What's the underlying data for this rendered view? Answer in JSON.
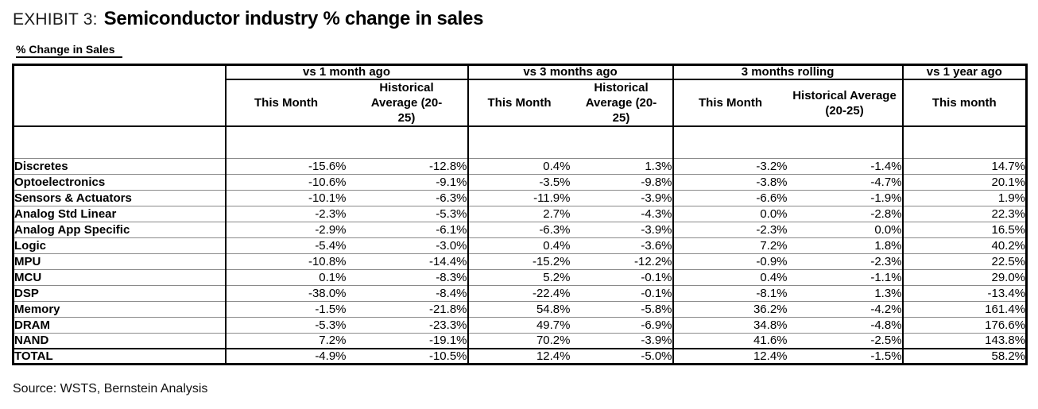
{
  "header": {
    "exhibit_label": "EXHIBIT 3:",
    "title": "Semiconductor industry % change in sales",
    "caption": "% Change in Sales"
  },
  "footer": {
    "source": "Source: WSTS, Bernstein Analysis"
  },
  "table": {
    "column_groups": [
      {
        "label": "vs 1 month ago",
        "sub": [
          "This Month",
          "Historical Average (20-25)"
        ]
      },
      {
        "label": "vs 3 months ago",
        "sub": [
          "This Month",
          "Historical Average (20-25)"
        ]
      },
      {
        "label": "3 months rolling",
        "sub": [
          "This Month",
          "Historical Average (20-25)"
        ]
      },
      {
        "label": "vs 1 year ago",
        "sub": [
          "This month"
        ]
      }
    ],
    "rows": [
      {
        "label": "Discretes",
        "indent": false,
        "total": false,
        "values": [
          "-15.6%",
          "-12.8%",
          "0.4%",
          "1.3%",
          "-3.2%",
          "-1.4%",
          "14.7%"
        ]
      },
      {
        "label": "Optoelectronics",
        "indent": false,
        "total": false,
        "values": [
          "-10.6%",
          "-9.1%",
          "-3.5%",
          "-9.8%",
          "-3.8%",
          "-4.7%",
          "20.1%"
        ]
      },
      {
        "label": "Sensors & Actuators",
        "indent": false,
        "total": false,
        "values": [
          "-10.1%",
          "-6.3%",
          "-11.9%",
          "-3.9%",
          "-6.6%",
          "-1.9%",
          "1.9%"
        ]
      },
      {
        "label": "Analog Std Linear",
        "indent": false,
        "total": false,
        "values": [
          "-2.3%",
          "-5.3%",
          "2.7%",
          "-4.3%",
          "0.0%",
          "-2.8%",
          "22.3%"
        ]
      },
      {
        "label": "Analog App Specific",
        "indent": false,
        "total": false,
        "values": [
          "-2.9%",
          "-6.1%",
          "-6.3%",
          "-3.9%",
          "-2.3%",
          "0.0%",
          "16.5%"
        ]
      },
      {
        "label": "Logic",
        "indent": false,
        "total": false,
        "values": [
          "-5.4%",
          "-3.0%",
          "0.4%",
          "-3.6%",
          "7.2%",
          "1.8%",
          "40.2%"
        ]
      },
      {
        "label": "MPU",
        "indent": false,
        "total": false,
        "values": [
          "-10.8%",
          "-14.4%",
          "-15.2%",
          "-12.2%",
          "-0.9%",
          "-2.3%",
          "22.5%"
        ]
      },
      {
        "label": "MCU",
        "indent": false,
        "total": false,
        "values": [
          "0.1%",
          "-8.3%",
          "5.2%",
          "-0.1%",
          "0.4%",
          "-1.1%",
          "29.0%"
        ]
      },
      {
        "label": "DSP",
        "indent": false,
        "total": false,
        "values": [
          "-38.0%",
          "-8.4%",
          "-22.4%",
          "-0.1%",
          "-8.1%",
          "1.3%",
          "-13.4%"
        ]
      },
      {
        "label": "Memory",
        "indent": false,
        "total": false,
        "values": [
          "-1.5%",
          "-21.8%",
          "54.8%",
          "-5.8%",
          "36.2%",
          "-4.2%",
          "161.4%"
        ]
      },
      {
        "label": "DRAM",
        "indent": true,
        "total": false,
        "values": [
          "-5.3%",
          "-23.3%",
          "49.7%",
          "-6.9%",
          "34.8%",
          "-4.8%",
          "176.6%"
        ]
      },
      {
        "label": "NAND",
        "indent": true,
        "total": false,
        "values": [
          "7.2%",
          "-19.1%",
          "70.2%",
          "-3.9%",
          "41.6%",
          "-2.5%",
          "143.8%"
        ]
      },
      {
        "label": "TOTAL",
        "indent": false,
        "total": true,
        "values": [
          "-4.9%",
          "-10.5%",
          "12.4%",
          "-5.0%",
          "12.4%",
          "-1.5%",
          "58.2%"
        ]
      }
    ]
  }
}
